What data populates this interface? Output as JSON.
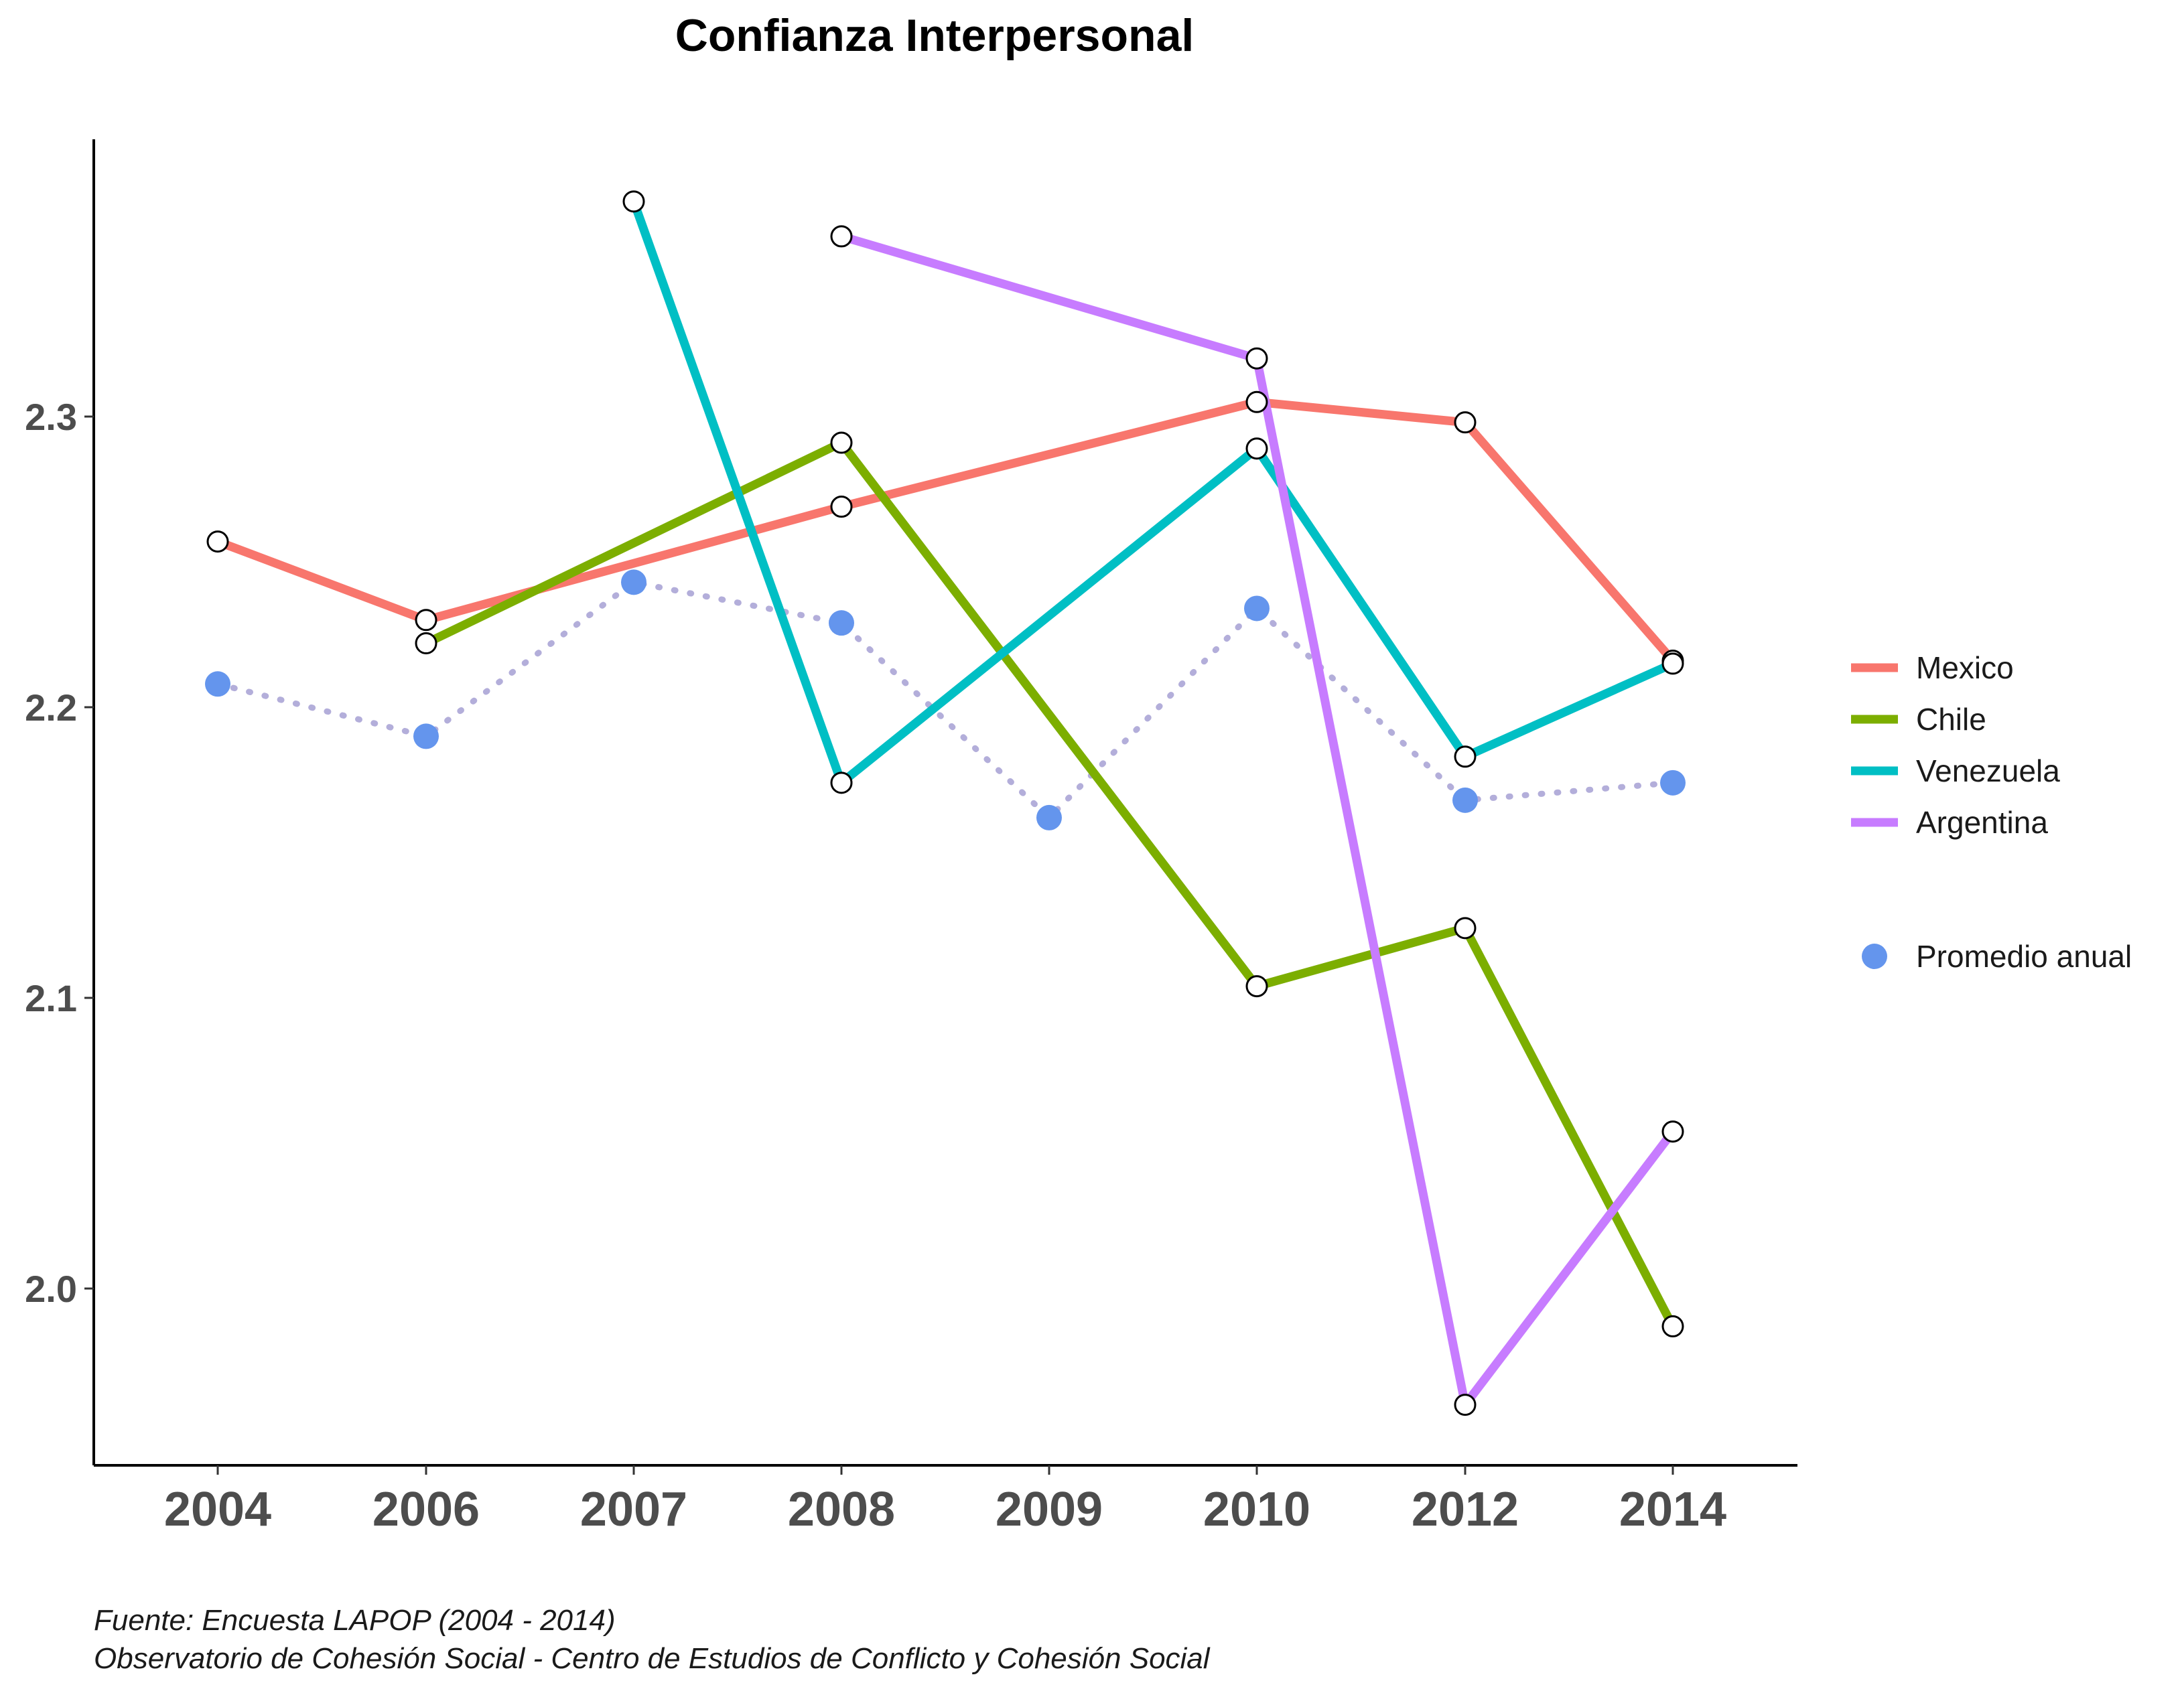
{
  "chart_data": {
    "type": "line",
    "title": "Confianza Interpersonal",
    "xlabel": "",
    "ylabel": "",
    "categories": [
      "2004",
      "2006",
      "2007",
      "2008",
      "2009",
      "2010",
      "2012",
      "2014"
    ],
    "yticks": [
      "2.0",
      "2.1",
      "2.2",
      "2.3"
    ],
    "ylim": [
      1.94,
      2.39
    ],
    "grid": false,
    "legend_position": "right",
    "series": [
      {
        "name": "Mexico",
        "color": "#F8766D",
        "values": [
          2.257,
          2.23,
          null,
          2.269,
          null,
          2.305,
          2.298,
          2.216
        ]
      },
      {
        "name": "Chile",
        "color": "#7CAE00",
        "values": [
          null,
          2.222,
          null,
          2.291,
          null,
          2.104,
          2.124,
          1.987
        ]
      },
      {
        "name": "Venezuela",
        "color": "#00BFC4",
        "values": [
          null,
          null,
          2.374,
          2.174,
          null,
          2.289,
          2.183,
          2.215
        ]
      },
      {
        "name": "Argentina",
        "color": "#C77CFF",
        "values": [
          null,
          null,
          null,
          2.362,
          null,
          2.32,
          1.96,
          2.054
        ]
      }
    ],
    "average": {
      "name": "Promedio anual",
      "color": "#6495ED",
      "line_color": "#B3AEDA",
      "values": [
        2.208,
        2.19,
        2.243,
        2.229,
        2.162,
        2.234,
        2.168,
        2.174
      ]
    }
  },
  "caption": {
    "line1": "Fuente: Encuesta LAPOP (2004 - 2014)",
    "line2": "Observatorio de Cohesión Social - Centro de Estudios de Conflicto y Cohesión Social"
  }
}
